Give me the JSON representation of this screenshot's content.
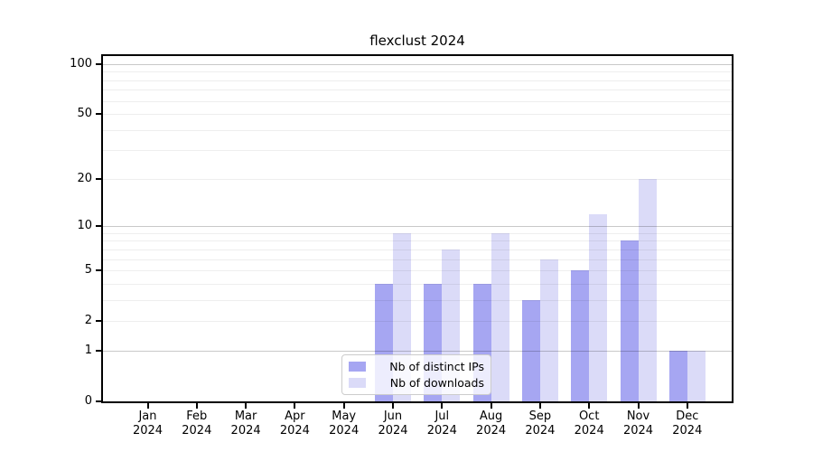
{
  "title": "flexclust 2024",
  "colors": {
    "distinct_ips": "#a6a6f2",
    "downloads": "#dbdbf8",
    "spine": "#000000",
    "grid_major": "rgba(0,0,0,0.21)",
    "grid_minor": "rgba(0,0,0,0.065)"
  },
  "legend": {
    "items": [
      {
        "label": "Nb of distinct IPs",
        "color_key": "distinct_ips"
      },
      {
        "label": "Nb of downloads",
        "color_key": "downloads"
      }
    ]
  },
  "chart_data": {
    "type": "bar",
    "title": "flexclust 2024",
    "categories": [
      {
        "month": "Jan",
        "year": "2024"
      },
      {
        "month": "Feb",
        "year": "2024"
      },
      {
        "month": "Mar",
        "year": "2024"
      },
      {
        "month": "Apr",
        "year": "2024"
      },
      {
        "month": "May",
        "year": "2024"
      },
      {
        "month": "Jun",
        "year": "2024"
      },
      {
        "month": "Jul",
        "year": "2024"
      },
      {
        "month": "Aug",
        "year": "2024"
      },
      {
        "month": "Sep",
        "year": "2024"
      },
      {
        "month": "Oct",
        "year": "2024"
      },
      {
        "month": "Nov",
        "year": "2024"
      },
      {
        "month": "Dec",
        "year": "2024"
      }
    ],
    "series": [
      {
        "name": "Nb of distinct IPs",
        "color_key": "distinct_ips",
        "values": [
          0,
          0,
          0,
          0,
          0,
          4,
          4,
          4,
          3,
          5,
          8,
          1
        ]
      },
      {
        "name": "Nb of downloads",
        "color_key": "downloads",
        "values": [
          0,
          0,
          0,
          0,
          0,
          9,
          7,
          9,
          6,
          12,
          20,
          1
        ]
      }
    ],
    "xlabel": "",
    "ylabel": "",
    "yscale": "log1p",
    "ylim": [
      0,
      111.5
    ],
    "yticks": [
      0,
      1,
      2,
      5,
      10,
      20,
      50,
      100
    ],
    "grid": true,
    "grid_major_values": [
      1,
      10,
      100
    ],
    "grid_minor_values": [
      2,
      3,
      4,
      5,
      6,
      7,
      8,
      9,
      20,
      30,
      40,
      50,
      60,
      70,
      80,
      90
    ],
    "legend_position": "lower center"
  }
}
